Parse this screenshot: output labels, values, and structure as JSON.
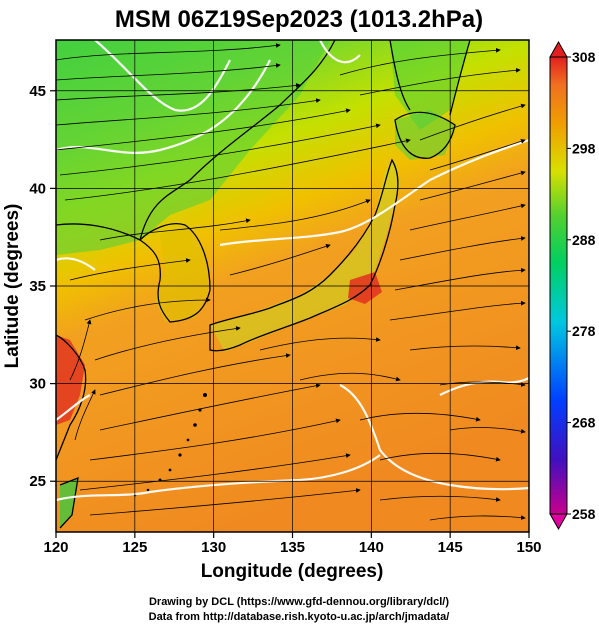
{
  "title": "MSM 06Z19Sep2023 (1013.2hPa)",
  "x_axis": {
    "label": "Longitude (degrees)",
    "ticks": [
      "120",
      "125",
      "130",
      "135",
      "140",
      "145",
      "150"
    ],
    "tick_values": [
      120,
      125,
      130,
      135,
      140,
      145,
      150
    ],
    "range": [
      120,
      150
    ]
  },
  "y_axis": {
    "label": "Latitude  (degrees)",
    "ticks": [
      "25",
      "30",
      "35",
      "40",
      "45"
    ],
    "tick_values": [
      25,
      30,
      35,
      40,
      45
    ],
    "range": [
      22.4,
      47.6
    ]
  },
  "colorbar": {
    "labels": [
      "308",
      "298",
      "288",
      "278",
      "268",
      "258"
    ],
    "values": [
      308,
      298,
      288,
      278,
      268,
      258
    ],
    "min": 258,
    "max": 308,
    "colors": [
      "#c8008c",
      "#2000c8",
      "#0030ff",
      "#00c8e0",
      "#00d070",
      "#30c830",
      "#d0e000",
      "#f0a000",
      "#f07020",
      "#e02020"
    ]
  },
  "credits": {
    "line1": "Drawing by DCL (https://www.gfd-dennou.org/library/dcl/)",
    "line2": "Data from http://database.rish.kyoto-u.ac.jp/arch/jmadata/"
  },
  "colors": {
    "ocean_warm": "#f29020",
    "land_cool": "#40d040",
    "land_mid": "#c8e000",
    "hot_spot": "#e03020",
    "contour_white": "#ffffff",
    "streamline": "#000000"
  }
}
